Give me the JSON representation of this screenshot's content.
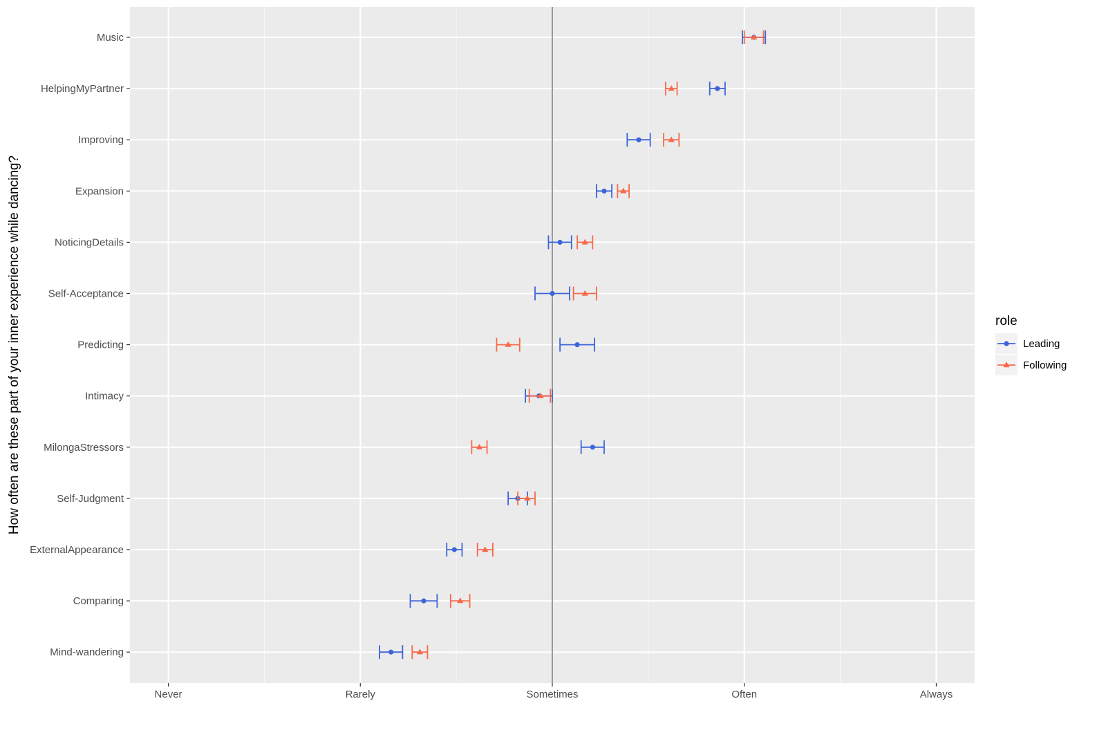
{
  "chart_data": {
    "type": "errorbar",
    "title": "",
    "xlabel": "",
    "ylabel": "How often are these part of your inner experience while dancing?",
    "x_categories": [
      "Never",
      "Rarely",
      "Sometimes",
      "Often",
      "Always"
    ],
    "xlim": [
      0.8,
      5.2
    ],
    "reference_line": 3,
    "categories": [
      "Music",
      "HelpingMyPartner",
      "Improving",
      "Expansion",
      "NoticingDetails",
      "Self-Acceptance",
      "Predicting",
      "Intimacy",
      "MilongaStressors",
      "Self-Judgment",
      "ExternalAppearance",
      "Comparing",
      "Mind-wandering"
    ],
    "legend": {
      "title": "role",
      "position": "right"
    },
    "grid": true,
    "series": [
      {
        "name": "Leading",
        "color": "#3d64d8",
        "marker": "circle",
        "points": [
          {
            "category": "Music",
            "mean": 4.05,
            "low": 3.99,
            "high": 4.11
          },
          {
            "category": "HelpingMyPartner",
            "mean": 3.86,
            "low": 3.82,
            "high": 3.9
          },
          {
            "category": "Improving",
            "mean": 3.45,
            "low": 3.39,
            "high": 3.51
          },
          {
            "category": "Expansion",
            "mean": 3.27,
            "low": 3.23,
            "high": 3.31
          },
          {
            "category": "NoticingDetails",
            "mean": 3.04,
            "low": 2.98,
            "high": 3.1
          },
          {
            "category": "Self-Acceptance",
            "mean": 3.0,
            "low": 2.91,
            "high": 3.09
          },
          {
            "category": "Predicting",
            "mean": 3.13,
            "low": 3.04,
            "high": 3.22
          },
          {
            "category": "Intimacy",
            "mean": 2.93,
            "low": 2.86,
            "high": 3.0
          },
          {
            "category": "MilongaStressors",
            "mean": 3.21,
            "low": 3.15,
            "high": 3.27
          },
          {
            "category": "Self-Judgment",
            "mean": 2.82,
            "low": 2.77,
            "high": 2.87
          },
          {
            "category": "ExternalAppearance",
            "mean": 2.49,
            "low": 2.45,
            "high": 2.53
          },
          {
            "category": "Comparing",
            "mean": 2.33,
            "low": 2.26,
            "high": 2.4
          },
          {
            "category": "Mind-wandering",
            "mean": 2.16,
            "low": 2.1,
            "high": 2.22
          }
        ]
      },
      {
        "name": "Following",
        "color": "#f8694a",
        "marker": "triangle",
        "points": [
          {
            "category": "Music",
            "mean": 4.05,
            "low": 4.0,
            "high": 4.1
          },
          {
            "category": "HelpingMyPartner",
            "mean": 3.62,
            "low": 3.59,
            "high": 3.65
          },
          {
            "category": "Improving",
            "mean": 3.62,
            "low": 3.58,
            "high": 3.66
          },
          {
            "category": "Expansion",
            "mean": 3.37,
            "low": 3.34,
            "high": 3.4
          },
          {
            "category": "NoticingDetails",
            "mean": 3.17,
            "low": 3.13,
            "high": 3.21
          },
          {
            "category": "Self-Acceptance",
            "mean": 3.17,
            "low": 3.11,
            "high": 3.23
          },
          {
            "category": "Predicting",
            "mean": 2.77,
            "low": 2.71,
            "high": 2.83
          },
          {
            "category": "Intimacy",
            "mean": 2.94,
            "low": 2.88,
            "high": 2.99
          },
          {
            "category": "MilongaStressors",
            "mean": 2.62,
            "low": 2.58,
            "high": 2.66
          },
          {
            "category": "Self-Judgment",
            "mean": 2.87,
            "low": 2.82,
            "high": 2.91
          },
          {
            "category": "ExternalAppearance",
            "mean": 2.65,
            "low": 2.61,
            "high": 2.69
          },
          {
            "category": "Comparing",
            "mean": 2.52,
            "low": 2.47,
            "high": 2.57
          },
          {
            "category": "Mind-wandering",
            "mean": 2.31,
            "low": 2.27,
            "high": 2.35
          }
        ]
      }
    ]
  }
}
